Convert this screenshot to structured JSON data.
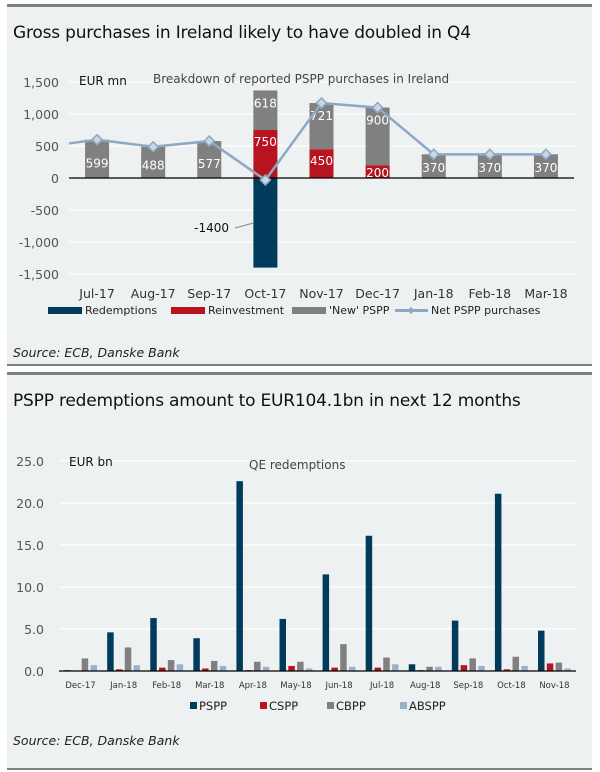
{
  "panels": [
    {
      "title": "Gross purchases in Ireland likely to have doubled in Q4",
      "source": "Source: ECB, Danske Bank"
    },
    {
      "title": "PSPP redemptions amount to EUR104.1bn in next 12 months",
      "source": "Source: ECB, Danske Bank"
    }
  ],
  "colors": {
    "redemptions": "#003b5c",
    "reinvestment": "#b8141f",
    "new_pspp": "#808080",
    "net_line": "#8ea8c3",
    "pspp": "#003b5c",
    "cspp": "#b8141f",
    "cbpp": "#808080",
    "abspp": "#9ab1cc"
  },
  "chart_data": [
    {
      "type": "bar",
      "stacked": true,
      "title": "Breakdown of reported PSPP purchases in Ireland",
      "ylabel": "EUR mn",
      "xlabel": "",
      "ylim": [
        -1500,
        1500
      ],
      "yticks": [
        1500,
        1000,
        500,
        0,
        -500,
        -1000,
        -1500
      ],
      "ytick_labels": [
        "1,500",
        "1,000",
        "500",
        "0",
        "-500",
        "-1,000",
        "-1,500"
      ],
      "grid": true,
      "legend_position": "bottom",
      "categories": [
        "Jul-17",
        "Aug-17",
        "Sep-17",
        "Oct-17",
        "Nov-17",
        "Dec-17",
        "Jan-18",
        "Feb-18",
        "Mar-18"
      ],
      "series": [
        {
          "name": "Redemptions",
          "kind": "bar",
          "values": [
            0,
            0,
            0,
            -1400,
            0,
            0,
            0,
            0,
            0
          ]
        },
        {
          "name": "Reinvestment",
          "kind": "bar",
          "values": [
            0,
            0,
            0,
            750,
            450,
            200,
            0,
            0,
            0
          ]
        },
        {
          "name": "'New' PSPP",
          "kind": "bar",
          "values": [
            599,
            488,
            577,
            618,
            721,
            900,
            370,
            370,
            370
          ]
        },
        {
          "name": "Net PSPP purchases",
          "kind": "line",
          "values": [
            599,
            488,
            577,
            -32,
            1171,
            1100,
            370,
            370,
            370
          ],
          "start_value": 540
        }
      ],
      "data_labels": [
        {
          "category": "Jul-17",
          "series": "'New' PSPP",
          "text": "599"
        },
        {
          "category": "Aug-17",
          "series": "'New' PSPP",
          "text": "488"
        },
        {
          "category": "Sep-17",
          "series": "'New' PSPP",
          "text": "577"
        },
        {
          "category": "Oct-17",
          "series": "'New' PSPP",
          "text": "618"
        },
        {
          "category": "Oct-17",
          "series": "Reinvestment",
          "text": "750"
        },
        {
          "category": "Nov-17",
          "series": "'New' PSPP",
          "text": "721"
        },
        {
          "category": "Nov-17",
          "series": "Reinvestment",
          "text": "450"
        },
        {
          "category": "Dec-17",
          "series": "'New' PSPP",
          "text": "900"
        },
        {
          "category": "Dec-17",
          "series": "Reinvestment",
          "text": "200"
        },
        {
          "category": "Jan-18",
          "series": "'New' PSPP",
          "text": "370"
        },
        {
          "category": "Feb-18",
          "series": "'New' PSPP",
          "text": "370"
        },
        {
          "category": "Mar-18",
          "series": "'New' PSPP",
          "text": "370"
        }
      ],
      "annotations": [
        {
          "text": "-1400",
          "category": "Oct-17",
          "series": "Redemptions"
        }
      ]
    },
    {
      "type": "bar",
      "stacked": false,
      "title": "QE redemptions",
      "ylabel": "EUR bn",
      "xlabel": "",
      "ylim": [
        0,
        25
      ],
      "yticks": [
        25,
        20,
        15,
        10,
        5,
        0
      ],
      "ytick_labels": [
        "25.0",
        "20.0",
        "15.0",
        "10.0",
        "5.0",
        "0.0"
      ],
      "grid": true,
      "legend_position": "bottom",
      "categories": [
        "Dec-17",
        "Jan-18",
        "Feb-18",
        "Mar-18",
        "Apr-18",
        "May-18",
        "Jun-18",
        "Jul-18",
        "Aug-18",
        "Sep-18",
        "Oct-18",
        "Nov-18"
      ],
      "series": [
        {
          "name": "PSPP",
          "values": [
            0.1,
            4.6,
            6.3,
            3.9,
            22.6,
            6.2,
            11.5,
            16.1,
            0.8,
            6.0,
            21.1,
            4.8
          ]
        },
        {
          "name": "CSPP",
          "values": [
            0.0,
            0.2,
            0.4,
            0.3,
            0.1,
            0.6,
            0.4,
            0.4,
            0.1,
            0.7,
            0.2,
            0.9
          ]
        },
        {
          "name": "CBPP",
          "values": [
            1.5,
            2.8,
            1.3,
            1.2,
            1.1,
            1.1,
            3.2,
            1.6,
            0.5,
            1.5,
            1.7,
            1.0
          ]
        },
        {
          "name": "ABSPP",
          "values": [
            0.7,
            0.7,
            0.8,
            0.6,
            0.5,
            0.3,
            0.5,
            0.8,
            0.5,
            0.6,
            0.6,
            0.3
          ]
        }
      ]
    }
  ]
}
